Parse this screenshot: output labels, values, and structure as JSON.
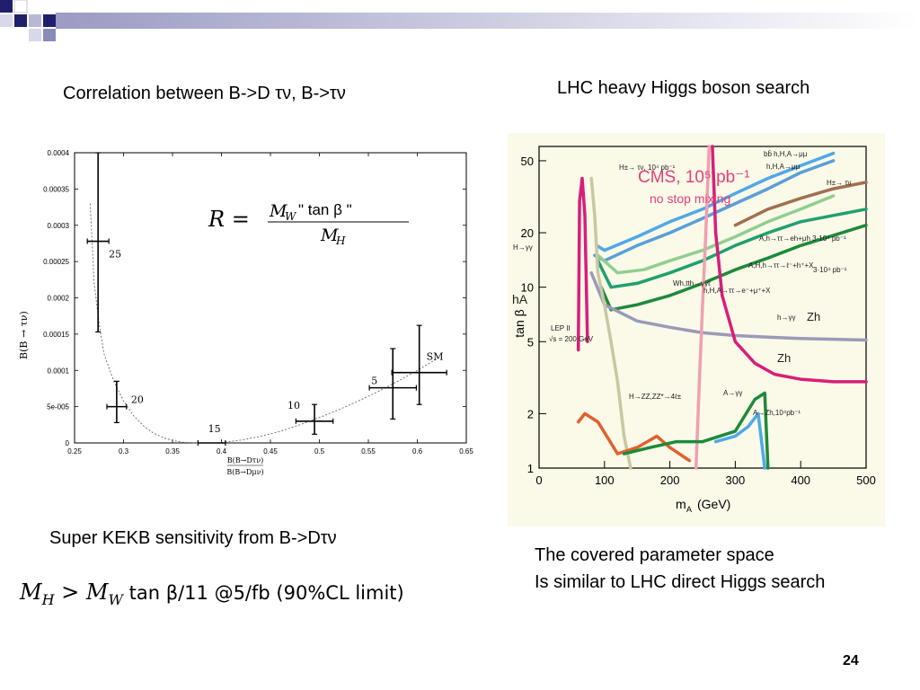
{
  "slide": {
    "title_left": "Correlation between B->D τν, B->τν",
    "title_right": "LHC heavy Higgs boson search",
    "caption_left": "Super KEKB sensitivity from B->Dτν",
    "caption_right_line1": "The covered parameter space",
    "caption_right_line2": "Is similar to LHC direct Higgs search",
    "formula_lhs": "M",
    "formula_lhs_sub": "H",
    "formula_op": " > ",
    "formula_rhs": "M",
    "formula_rhs_sub": "W",
    "formula_rest": " tan β/11 @5/fb (90%CL limit)",
    "page_number": "24",
    "colors": {
      "deco_dark": "#1f1f6e",
      "deco_light": "#8b8bb8",
      "deco_fade": "#e6e6f0"
    }
  },
  "chart_data": [
    {
      "type": "scatter",
      "xlabel": "B(B→Dτν)/B(B→Dμν)",
      "xlabel_num": "B(B→Dτν)",
      "xlabel_den": "B(B→Dμν)",
      "ylabel": "B(B → τν)",
      "xlim": [
        0.25,
        0.65
      ],
      "ylim": [
        0,
        0.0004
      ],
      "xticks": [
        0.25,
        0.3,
        0.35,
        0.4,
        0.45,
        0.5,
        0.55,
        0.6,
        0.65
      ],
      "xtick_labels": [
        "0.25",
        "0.3",
        "0.35",
        "0.4",
        "0.45",
        "0.5",
        "0.55",
        "0.6",
        "0.65"
      ],
      "yticks": [
        0,
        5e-05,
        0.0001,
        0.00015,
        0.0002,
        0.00025,
        0.0003,
        0.00035,
        0.0004
      ],
      "ytick_labels": [
        "0",
        "5e-005",
        "0.0001",
        "0.00015",
        "0.0002",
        "0.00025",
        "0.0003",
        "0.00035",
        "0.0004"
      ],
      "formula_R": "R =",
      "formula_num": "M",
      "formula_num_sub": "W",
      "formula_num_rest": " \" tan β \"",
      "formula_den": "M",
      "formula_den_sub": "H",
      "points": [
        {
          "label": "25",
          "x": 0.274,
          "y": 0.000278,
          "xerr": 0.011,
          "yerr_lo": 0.000125,
          "yerr_hi": 0.000122
        },
        {
          "label": "20",
          "x": 0.293,
          "y": 5e-05,
          "xerr": 0.01,
          "yerr_lo": 2.2e-05,
          "yerr_hi": 3.5e-05
        },
        {
          "label": "15",
          "x": 0.39,
          "y": 0.0,
          "xerr": 0.014,
          "yerr_lo": 0.0,
          "yerr_hi": 0.0
        },
        {
          "label": "10",
          "x": 0.495,
          "y": 3e-05,
          "xerr": 0.019,
          "yerr_lo": 1.8e-05,
          "yerr_hi": 2.3e-05
        },
        {
          "label": "5",
          "x": 0.575,
          "y": 7.6e-05,
          "xerr": 0.024,
          "yerr_lo": 4.3e-05,
          "yerr_hi": 5.4e-05
        },
        {
          "label": "SM",
          "x": 0.602,
          "y": 9.7e-05,
          "xerr": 0.028,
          "yerr_lo": 4.4e-05,
          "yerr_hi": 6.5e-05
        }
      ],
      "curve": {
        "x": [
          0.266,
          0.27,
          0.275,
          0.28,
          0.29,
          0.3,
          0.31,
          0.32,
          0.33,
          0.34,
          0.35,
          0.36,
          0.37,
          0.38,
          0.39,
          0.4,
          0.42,
          0.44,
          0.46,
          0.48,
          0.5,
          0.52,
          0.54,
          0.56,
          0.58,
          0.6,
          0.62
        ],
        "y": [
          0.00033,
          0.00022,
          0.000165,
          0.000123,
          8.5e-05,
          5.8e-05,
          3.8e-05,
          2.4e-05,
          1.4e-05,
          7.5e-06,
          3.3e-06,
          1e-06,
          2e-07,
          0.0,
          0.0,
          5e-07,
          4e-06,
          9e-06,
          1.6e-05,
          2.5e-05,
          3.5e-05,
          4.6e-05,
          5.8e-05,
          7.1e-05,
          8.5e-05,
          0.0001,
          0.000116
        ]
      }
    },
    {
      "type": "line",
      "title": "CMS, 10⁵ pb⁻¹",
      "subtitle": "no stop mixing",
      "xlabel": "m_A (GeV)",
      "xlabel_main": "m",
      "xlabel_sub": "A",
      "xlabel_unit": "(GeV)",
      "ylabel": "tan β",
      "log_y": true,
      "xlim": [
        0,
        500
      ],
      "ylim": [
        1,
        60
      ],
      "xticks": [
        0,
        100,
        200,
        300,
        400,
        500
      ],
      "xtick_labels": [
        "0",
        "100",
        "200",
        "300",
        "400",
        "500"
      ],
      "yticks": [
        1,
        2,
        5,
        10,
        20,
        50
      ],
      "ytick_labels": [
        "1",
        "2",
        "5",
        "10",
        "20",
        "50"
      ],
      "annotations": [
        "bb̄ h,H,A→μμ",
        "h,H,A→μμ",
        "H±→ τν, 10⁴ pb⁻¹",
        "H±→ τν",
        "H→γγ",
        "hA",
        "LEP II",
        "√s = 200 GeV",
        "A,h→ττ→eh+μh 3·10⁴ pb⁻¹",
        "A,H,h→ττ→ℓ⁻+h⁺+X",
        "3·10⁴ pb⁻¹",
        "h,H,A→ττ→e⁻+μ⁺+X",
        "Wh,tth→γγℓ",
        "h→γγ",
        "Zh",
        "Zh",
        "H→ZZ,ZZ*→4ℓ±",
        "A→γγ",
        "A→Zh,10⁴pb⁻¹"
      ],
      "series": [
        {
          "color": "#5a9fd8",
          "x": [
            85,
            100,
            150,
            200,
            250,
            300,
            350,
            400,
            450
          ],
          "y": [
            15,
            14,
            17,
            20,
            24,
            29,
            35,
            43,
            50
          ]
        },
        {
          "color": "#4fa8e8",
          "x": [
            88,
            100,
            150,
            200,
            250,
            300,
            350,
            400,
            450
          ],
          "y": [
            17,
            16,
            19,
            23,
            27,
            33,
            40,
            47,
            55
          ]
        },
        {
          "color": "#20a070",
          "x": [
            90,
            110,
            150,
            200,
            250,
            300,
            350,
            400,
            500
          ],
          "y": [
            14,
            10,
            10.5,
            12,
            14,
            17,
            20,
            23,
            27
          ]
        },
        {
          "color": "#1d8a3a",
          "x": [
            95,
            110,
            150,
            200,
            250,
            300,
            350,
            400,
            500
          ],
          "y": [
            10,
            7.5,
            8,
            9,
            10.5,
            12.5,
            14.5,
            17,
            22
          ]
        },
        {
          "color": "#8fcf8f",
          "x": [
            90,
            120,
            160,
            200,
            250,
            300,
            350,
            400,
            450
          ],
          "y": [
            15,
            12,
            12.5,
            14,
            16,
            19,
            23,
            27,
            32
          ]
        },
        {
          "color": "#a07050",
          "x": [
            300,
            350,
            400,
            450,
            500
          ],
          "y": [
            22,
            27,
            31,
            35,
            38
          ]
        },
        {
          "color": "#9a9ab8",
          "x": [
            80,
            100,
            150,
            200,
            250,
            300,
            350,
            400,
            500
          ],
          "y": [
            12,
            8,
            6.5,
            6,
            5.6,
            5.4,
            5.3,
            5.2,
            5.1
          ]
        },
        {
          "color": "#d81e79",
          "x": [
            265,
            270,
            280,
            300,
            330,
            360,
            400,
            450,
            500
          ],
          "y": [
            60,
            20,
            9,
            5,
            3.8,
            3.3,
            3.1,
            3.0,
            3.0
          ]
        },
        {
          "color": "#d81e79",
          "x": [
            60,
            62,
            66,
            70,
            74
          ],
          "y": [
            4.5,
            30,
            40,
            25,
            5
          ]
        },
        {
          "color": "#c8c8a0",
          "x": [
            80,
            85,
            90,
            100,
            110,
            120,
            130,
            140
          ],
          "y": [
            40,
            25,
            12,
            8,
            5,
            3,
            1.5,
            1
          ]
        },
        {
          "color": "#f0a0b0",
          "x": [
            240,
            245,
            250,
            255,
            260
          ],
          "y": [
            1,
            3,
            8,
            20,
            60
          ]
        },
        {
          "color": "#e06030",
          "x": [
            60,
            70,
            90,
            120,
            150,
            180,
            200,
            230
          ],
          "y": [
            1.8,
            2.0,
            1.8,
            1.2,
            1.3,
            1.5,
            1.3,
            1.1
          ]
        },
        {
          "color": "#1d8a3a",
          "x": [
            130,
            170,
            210,
            250,
            300,
            330,
            345,
            350
          ],
          "y": [
            1.2,
            1.3,
            1.4,
            1.4,
            1.6,
            2.4,
            2.6,
            1.0
          ]
        },
        {
          "color": "#4fa8e8",
          "x": [
            270,
            300,
            320,
            335,
            345
          ],
          "y": [
            1.4,
            1.5,
            1.7,
            2.0,
            1.0
          ]
        }
      ]
    }
  ]
}
